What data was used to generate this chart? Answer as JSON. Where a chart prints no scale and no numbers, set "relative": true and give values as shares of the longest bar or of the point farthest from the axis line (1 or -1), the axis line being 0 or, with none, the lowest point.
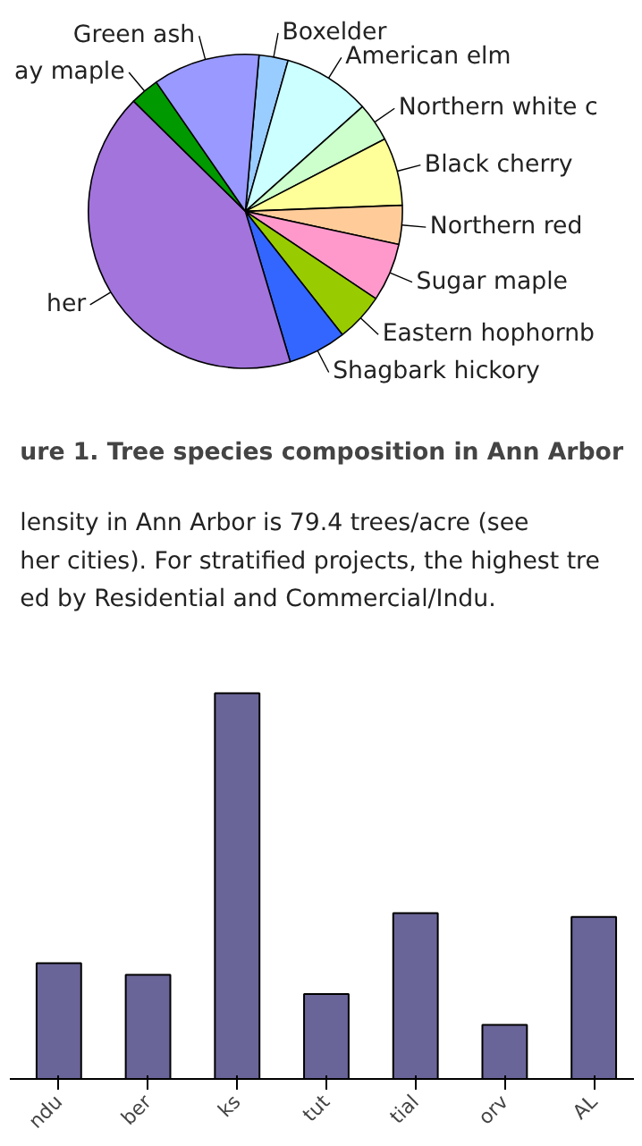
{
  "chart_data": [
    {
      "type": "pie",
      "title": "ure 1. Tree species composition in Ann Arbor",
      "categories": [
        "Boxelder",
        "American elm",
        "Northern white c",
        "Black cherry",
        "Northern red",
        "Sugar maple",
        "Eastern hophornb",
        "Shagbark hickory",
        "her",
        "ay maple",
        "Green ash"
      ],
      "values": [
        3,
        9,
        4,
        7,
        4,
        6,
        5,
        6,
        42,
        3,
        11
      ],
      "colors": [
        "#99ccff",
        "#ccffff",
        "#ccffcc",
        "#ffff99",
        "#ffcc99",
        "#ff99cc",
        "#99cc00",
        "#3366ff",
        "#a274dc",
        "#009900",
        "#9999ff"
      ],
      "annotations": [
        "lensity in Ann Arbor is 79.4 trees/acre (see",
        "her cities). For stratified projects, the highest tre",
        "ed by Residential and Commercial/Indu."
      ]
    },
    {
      "type": "bar",
      "relative": true,
      "categories": [
        "ndu",
        "ber",
        "ks",
        "tut",
        "tial",
        "orv",
        "AL"
      ],
      "values": [
        0.3,
        0.27,
        1,
        0.22,
        0.43,
        0.14,
        0.42
      ],
      "color": "#6a6598"
    }
  ]
}
